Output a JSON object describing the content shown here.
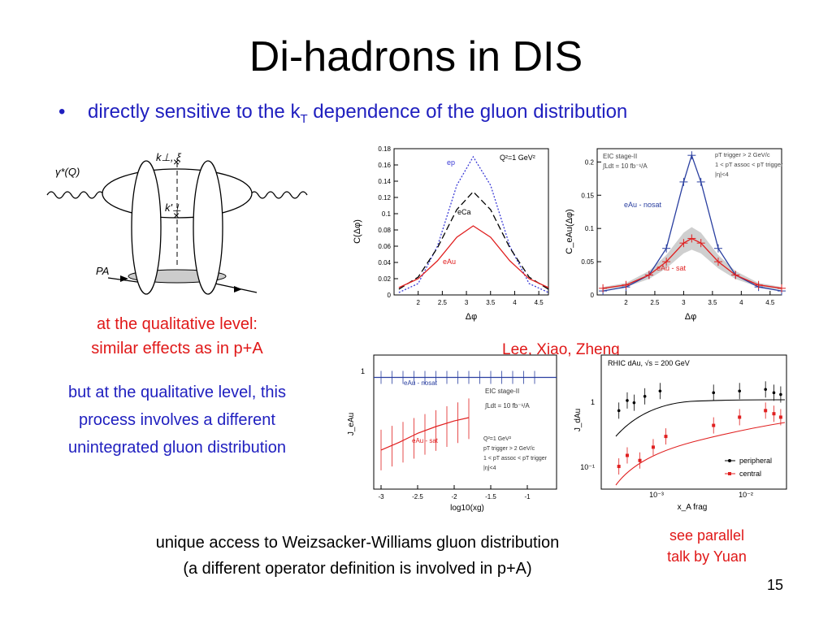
{
  "slide": {
    "title": "Di-hadrons in DIS",
    "bullet": {
      "pre": "directly sensitive to the k",
      "sub": "T",
      "post": " dependence of the gluon distribution"
    },
    "qualitative_red": [
      "at the qualitative level:",
      "similar effects as in p+A"
    ],
    "qualitative_blue": [
      "but at the qualitative level, this",
      "process involves a different",
      "unintegrated gluon distribution"
    ],
    "authors": "Lee, Xiao, Zheng",
    "footer": [
      "unique access to Weizsacker-Williams gluon distribution",
      "(a different operator definition is involved in p+A)"
    ],
    "parallel_talk": [
      "see parallel",
      "talk by Yuan"
    ],
    "page_number": "15"
  },
  "diagram": {
    "labels": {
      "photon": "γ*(Q)",
      "kperp": "k⊥, ξ",
      "kprime": "k'⊥",
      "pa": "PA"
    }
  },
  "plot1": {
    "ylabel": "C(Δφ)",
    "xlabel": "Δφ",
    "annotation": "Q²=1 GeV²",
    "ytick_labels": [
      "0",
      "0.02",
      "0.04",
      "0.06",
      "0.08",
      "0.1",
      "0.12",
      "0.14",
      "0.16",
      "0.18"
    ],
    "xtick_labels": [
      "2",
      "2.5",
      "3",
      "3.5",
      "4",
      "4.5"
    ],
    "series_labels": {
      "ep": "ep",
      "eca": "eCa",
      "eau": "eAu"
    }
  },
  "plot2": {
    "ylabel": "C_eAu(Δφ)",
    "xlabel": "Δφ",
    "info": [
      "EIC stage-II",
      "∫Ldt = 10 fb⁻¹/A"
    ],
    "cuts": [
      "pT trigger > 2 GeV/c",
      "1 < pT assoc < pT trigger",
      "|η|<4"
    ],
    "ytick_labels": [
      "0",
      "0.05",
      "0.1",
      "0.15",
      "0.2"
    ],
    "xtick_labels": [
      "2",
      "2.5",
      "3",
      "3.5",
      "4",
      "4.5"
    ],
    "series_labels": {
      "nosat": "eAu - nosat",
      "sat": "eAu - sat"
    }
  },
  "plot3": {
    "ylabel": "J_eAu",
    "xlabel": "log10(xg)",
    "ytick_labels": [
      "1"
    ],
    "xtick_labels": [
      "-3",
      "-2.5",
      "-2",
      "-1.5",
      "-1"
    ],
    "info": [
      "EIC stage-II",
      "∫Ldt = 10 fb⁻¹/A"
    ],
    "cuts": [
      "Q²=1 GeV²",
      "pT trigger > 2 GeV/c",
      "1 < pT assoc < pT trigger",
      "|η|<4"
    ],
    "series_labels": {
      "nosat": "eAu - nosat",
      "sat": "eAu - sat"
    }
  },
  "plot4": {
    "ylabel": "J_dAu",
    "xlabel": "x_A frag",
    "title": "RHIC dAu, √s = 200 GeV",
    "ytick_labels": [
      "1",
      "10⁻¹"
    ],
    "xtick_labels": [
      "10⁻³",
      "10⁻²"
    ],
    "legend": {
      "peripheral": "peripheral",
      "central": "central"
    }
  },
  "chart_data": [
    {
      "type": "line",
      "x": [
        1.6,
        2.0,
        2.4,
        2.8,
        3.14,
        3.5,
        3.9,
        4.3,
        4.7
      ],
      "series": [
        {
          "name": "ep",
          "values": [
            0.003,
            0.014,
            0.06,
            0.135,
            0.17,
            0.135,
            0.06,
            0.014,
            0.003
          ]
        },
        {
          "name": "eCa",
          "values": [
            0.007,
            0.022,
            0.058,
            0.105,
            0.127,
            0.105,
            0.058,
            0.022,
            0.007
          ]
        },
        {
          "name": "eAu",
          "values": [
            0.009,
            0.02,
            0.042,
            0.071,
            0.085,
            0.071,
            0.042,
            0.02,
            0.009
          ]
        }
      ],
      "xlabel": "Δφ",
      "ylabel": "C(Δφ)",
      "xlim": [
        1.5,
        4.7
      ],
      "ylim": [
        0,
        0.18
      ]
    },
    {
      "type": "line",
      "x": [
        1.6,
        2.0,
        2.4,
        2.7,
        3.0,
        3.14,
        3.3,
        3.6,
        3.9,
        4.3,
        4.7
      ],
      "series": [
        {
          "name": "eAu - nosat",
          "values": [
            0.006,
            0.012,
            0.03,
            0.07,
            0.17,
            0.21,
            0.17,
            0.07,
            0.03,
            0.012,
            0.006
          ]
        },
        {
          "name": "eAu - sat",
          "values": [
            0.01,
            0.015,
            0.03,
            0.05,
            0.078,
            0.085,
            0.078,
            0.05,
            0.03,
            0.015,
            0.01
          ]
        }
      ],
      "xlabel": "Δφ",
      "ylabel": "C_eAu(Δφ)",
      "xlim": [
        1.5,
        4.7
      ],
      "ylim": [
        0,
        0.22
      ]
    },
    {
      "type": "line",
      "x": [
        -3.0,
        -2.75,
        -2.5,
        -2.25,
        -2.0,
        -1.8
      ],
      "series": [
        {
          "name": "eAu - nosat",
          "values": [
            1.0,
            1.0,
            1.0,
            1.0,
            1.0,
            1.0
          ]
        },
        {
          "name": "eAu - sat",
          "values": [
            0.35,
            0.42,
            0.5,
            0.56,
            0.61,
            0.64
          ]
        }
      ],
      "xlabel": "log10(xg)",
      "ylabel": "J_eAu",
      "xlim": [
        -3.1,
        -0.6
      ]
    },
    {
      "type": "scatter",
      "series": [
        {
          "name": "peripheral",
          "x": [
            0.0004,
            0.0005,
            0.0006,
            0.0008,
            0.0012,
            0.005,
            0.01,
            0.02,
            0.025,
            0.03
          ],
          "values": [
            0.55,
            0.75,
            0.7,
            0.85,
            1.0,
            0.95,
            1.0,
            1.05,
            0.95,
            0.9
          ]
        },
        {
          "name": "central",
          "x": [
            0.0004,
            0.0005,
            0.0007,
            0.001,
            0.0014,
            0.005,
            0.01,
            0.02,
            0.025,
            0.03
          ],
          "values": [
            0.1,
            0.14,
            0.12,
            0.18,
            0.25,
            0.35,
            0.45,
            0.55,
            0.5,
            0.45
          ]
        }
      ],
      "xlabel": "x_A frag",
      "ylabel": "J_dAu"
    }
  ]
}
